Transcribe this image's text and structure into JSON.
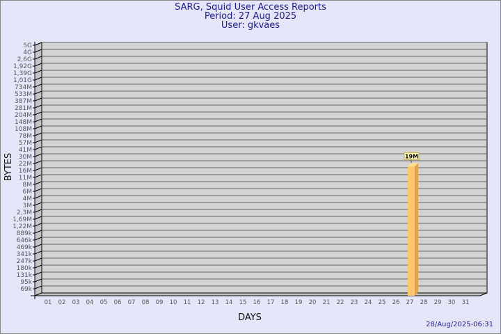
{
  "header": {
    "title": "SARG, Squid User Access Reports",
    "period": "Period: 27 Aug 2025",
    "user": "User: gkvaes"
  },
  "footer": {
    "generated": "28/Aug/2025-06:31"
  },
  "colors": {
    "background": "#e6e6fa",
    "title": "#1a1a9a",
    "bar": "#ffc66a",
    "bar_side": "#e0a450",
    "plot": "#d3d3d3"
  },
  "chart_data": {
    "type": "bar",
    "xlabel": "DAYS",
    "ylabel": "BYTES",
    "y_scale": "log",
    "grid": true,
    "y_ticks": [
      "5G",
      "4G",
      "2,6G",
      "1,92G",
      "1,39G",
      "1,01G",
      "734M",
      "533M",
      "387M",
      "281M",
      "204M",
      "148M",
      "108M",
      "78M",
      "57M",
      "41M",
      "30M",
      "22M",
      "16M",
      "11M",
      "8M",
      "6M",
      "4M",
      "3M",
      "2,3M",
      "1,69M",
      "1,22M",
      "889k",
      "646k",
      "469k",
      "341k",
      "247k",
      "180k",
      "131k",
      "95k",
      "69k"
    ],
    "categories": [
      "01",
      "02",
      "03",
      "04",
      "05",
      "06",
      "07",
      "08",
      "09",
      "10",
      "11",
      "12",
      "13",
      "14",
      "15",
      "16",
      "17",
      "18",
      "19",
      "20",
      "21",
      "22",
      "23",
      "24",
      "25",
      "26",
      "27",
      "28",
      "29",
      "30",
      "31"
    ],
    "values": [
      null,
      null,
      null,
      null,
      null,
      null,
      null,
      null,
      null,
      null,
      null,
      null,
      null,
      null,
      null,
      null,
      null,
      null,
      null,
      null,
      null,
      null,
      null,
      null,
      null,
      null,
      19000000,
      null,
      null,
      null,
      null
    ],
    "data_labels": {
      "27": "19M"
    }
  }
}
